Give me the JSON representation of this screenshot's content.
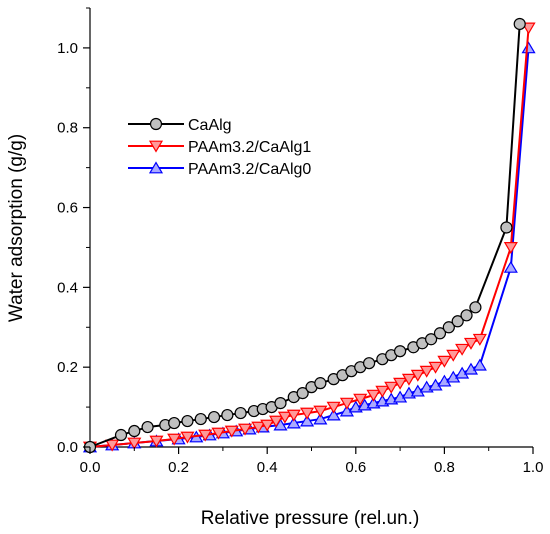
{
  "chart_data": {
    "type": "scatter",
    "title": "",
    "xlabel": "Relative pressure (rel.un.)",
    "ylabel": "Water adsorption (g/g)",
    "xlim": [
      0.0,
      1.0
    ],
    "ylim": [
      0.0,
      1.1
    ],
    "xticks": [
      "0.0",
      "0.2",
      "0.4",
      "0.6",
      "0.8",
      "1.0"
    ],
    "yticks": [
      "0.0",
      "0.2",
      "0.4",
      "0.6",
      "0.8",
      "1.0"
    ],
    "grid": false,
    "legend_position": "upper-left",
    "series": [
      {
        "name": "CaAlg",
        "line_color": "#000000",
        "marker": "circle",
        "marker_fill": "#c0c0c0",
        "points": [
          [
            0.0,
            0.0
          ],
          [
            0.07,
            0.03
          ],
          [
            0.1,
            0.04
          ],
          [
            0.13,
            0.05
          ],
          [
            0.17,
            0.055
          ],
          [
            0.19,
            0.06
          ],
          [
            0.22,
            0.065
          ],
          [
            0.25,
            0.07
          ],
          [
            0.28,
            0.075
          ],
          [
            0.31,
            0.08
          ],
          [
            0.34,
            0.085
          ],
          [
            0.37,
            0.09
          ],
          [
            0.39,
            0.095
          ],
          [
            0.41,
            0.1
          ],
          [
            0.43,
            0.11
          ],
          [
            0.46,
            0.125
          ],
          [
            0.48,
            0.135
          ],
          [
            0.5,
            0.15
          ],
          [
            0.52,
            0.16
          ],
          [
            0.55,
            0.17
          ],
          [
            0.57,
            0.18
          ],
          [
            0.59,
            0.19
          ],
          [
            0.61,
            0.2
          ],
          [
            0.63,
            0.21
          ],
          [
            0.66,
            0.22
          ],
          [
            0.68,
            0.23
          ],
          [
            0.7,
            0.24
          ],
          [
            0.73,
            0.25
          ],
          [
            0.75,
            0.26
          ],
          [
            0.77,
            0.27
          ],
          [
            0.79,
            0.285
          ],
          [
            0.81,
            0.3
          ],
          [
            0.83,
            0.315
          ],
          [
            0.85,
            0.33
          ],
          [
            0.87,
            0.35
          ],
          [
            0.94,
            0.55
          ],
          [
            0.97,
            1.06
          ]
        ]
      },
      {
        "name": "PAAm3.2/CaAlg1",
        "line_color": "#ff0000",
        "marker": "triangle-down",
        "marker_fill": "#ff9999",
        "points": [
          [
            0.0,
            0.0
          ],
          [
            0.05,
            0.005
          ],
          [
            0.1,
            0.01
          ],
          [
            0.15,
            0.015
          ],
          [
            0.19,
            0.02
          ],
          [
            0.22,
            0.025
          ],
          [
            0.26,
            0.03
          ],
          [
            0.29,
            0.035
          ],
          [
            0.32,
            0.04
          ],
          [
            0.35,
            0.045
          ],
          [
            0.38,
            0.05
          ],
          [
            0.4,
            0.055
          ],
          [
            0.42,
            0.065
          ],
          [
            0.44,
            0.075
          ],
          [
            0.46,
            0.08
          ],
          [
            0.49,
            0.085
          ],
          [
            0.52,
            0.09
          ],
          [
            0.55,
            0.1
          ],
          [
            0.58,
            0.11
          ],
          [
            0.61,
            0.12
          ],
          [
            0.64,
            0.13
          ],
          [
            0.66,
            0.14
          ],
          [
            0.68,
            0.15
          ],
          [
            0.7,
            0.16
          ],
          [
            0.72,
            0.17
          ],
          [
            0.74,
            0.18
          ],
          [
            0.76,
            0.19
          ],
          [
            0.78,
            0.2
          ],
          [
            0.8,
            0.215
          ],
          [
            0.82,
            0.23
          ],
          [
            0.84,
            0.245
          ],
          [
            0.86,
            0.26
          ],
          [
            0.88,
            0.27
          ],
          [
            0.95,
            0.5
          ],
          [
            0.99,
            1.05
          ]
        ]
      },
      {
        "name": "PAAm3.2/CaAlg0",
        "line_color": "#0000ff",
        "marker": "triangle-up",
        "marker_fill": "#aaaaff",
        "points": [
          [
            0.0,
            0.0
          ],
          [
            0.05,
            0.005
          ],
          [
            0.1,
            0.01
          ],
          [
            0.15,
            0.015
          ],
          [
            0.2,
            0.02
          ],
          [
            0.24,
            0.025
          ],
          [
            0.27,
            0.03
          ],
          [
            0.3,
            0.035
          ],
          [
            0.33,
            0.04
          ],
          [
            0.36,
            0.045
          ],
          [
            0.39,
            0.05
          ],
          [
            0.43,
            0.055
          ],
          [
            0.46,
            0.06
          ],
          [
            0.49,
            0.065
          ],
          [
            0.52,
            0.07
          ],
          [
            0.55,
            0.08
          ],
          [
            0.58,
            0.09
          ],
          [
            0.6,
            0.1
          ],
          [
            0.62,
            0.105
          ],
          [
            0.64,
            0.11
          ],
          [
            0.66,
            0.115
          ],
          [
            0.68,
            0.12
          ],
          [
            0.7,
            0.125
          ],
          [
            0.72,
            0.135
          ],
          [
            0.74,
            0.14
          ],
          [
            0.76,
            0.15
          ],
          [
            0.78,
            0.155
          ],
          [
            0.8,
            0.165
          ],
          [
            0.82,
            0.175
          ],
          [
            0.84,
            0.185
          ],
          [
            0.86,
            0.195
          ],
          [
            0.88,
            0.205
          ],
          [
            0.95,
            0.45
          ],
          [
            0.99,
            1.0
          ]
        ]
      }
    ]
  }
}
